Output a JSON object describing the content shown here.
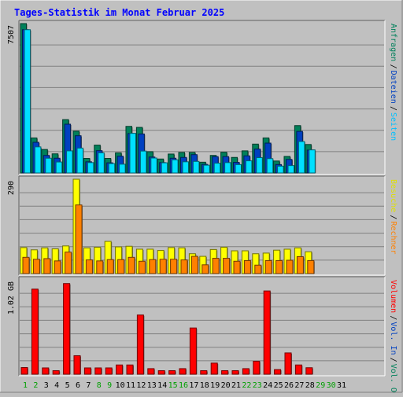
{
  "chart_data": {
    "type": "bar",
    "title": "Tages-Statistik im Monat Februar 2025",
    "categories": [
      "1",
      "2",
      "3",
      "4",
      "5",
      "6",
      "7",
      "8",
      "9",
      "10",
      "11",
      "12",
      "13",
      "14",
      "15",
      "16",
      "17",
      "18",
      "19",
      "20",
      "21",
      "22",
      "23",
      "24",
      "25",
      "26",
      "27",
      "28",
      "29",
      "30",
      "31"
    ],
    "weekend_categories": [
      "1",
      "2",
      "8",
      "9",
      "15",
      "16",
      "22",
      "23",
      "29",
      "30"
    ],
    "panels": [
      {
        "ytick": "7507",
        "ylim": [
          0,
          7507
        ],
        "right_labels": [
          {
            "text": "Anfragen",
            "color": "#00805a"
          },
          {
            "text": "Dateien",
            "color": "#0040c0"
          },
          {
            "text": "Seiten",
            "color": "#00c0ff"
          }
        ],
        "series": [
          {
            "name": "Anfragen",
            "color": "#00805a",
            "values": [
              7507,
              1760,
              1180,
              960,
              2680,
              2100,
              730,
              1400,
              730,
              1010,
              2340,
              2290,
              1070,
              700,
              950,
              1030,
              1030,
              540,
              880,
              1040,
              780,
              1110,
              1450,
              1760,
              600,
              830,
              2380,
              1430,
              0,
              0,
              0
            ]
          },
          {
            "name": "Dateien",
            "color": "#0040c0",
            "values": [
              7200,
              1540,
              880,
              740,
              2450,
              1870,
              560,
              1120,
              510,
              840,
              1980,
              1960,
              800,
              520,
              740,
              780,
              920,
              430,
              820,
              820,
              530,
              860,
              1200,
              1500,
              420,
              680,
              2090,
              1150,
              0,
              0,
              0
            ]
          },
          {
            "name": "Seiten",
            "color": "#00e0ff",
            "values": [
              7200,
              1310,
              740,
              550,
              1110,
              1250,
              520,
              1010,
              470,
              440,
              1990,
              1100,
              750,
              510,
              660,
              560,
              580,
              390,
              490,
              520,
              420,
              610,
              770,
              720,
              340,
              370,
              1580,
              1160,
              0,
              0,
              0
            ]
          }
        ]
      },
      {
        "ytick": "290",
        "ylim": [
          0,
          290
        ],
        "right_labels": [
          {
            "text": "Besuche",
            "color": "#e0e000"
          },
          {
            "text": "Rechner",
            "color": "#ff8000"
          }
        ],
        "series": [
          {
            "name": "Besuche",
            "color": "#ffff00",
            "values": [
              80,
              73,
              79,
              76,
              85,
              290,
              79,
              81,
              99,
              82,
              84,
              75,
              75,
              71,
              80,
              79,
              61,
              53,
              74,
              81,
              70,
              70,
              61,
              63,
              72,
              75,
              79,
              67,
              0,
              0,
              0
            ]
          },
          {
            "name": "Rechner",
            "color": "#ff8000",
            "values": [
              50,
              44,
              46,
              39,
              66,
              211,
              42,
              39,
              43,
              43,
              50,
              38,
              43,
              44,
              44,
              42,
              53,
              27,
              47,
              47,
              38,
              40,
              26,
              40,
              40,
              41,
              52,
              40,
              0,
              0,
              0
            ]
          }
        ]
      },
      {
        "ytick": "1.02 GB",
        "ylim": [
          0,
          1.02
        ],
        "right_labels": [
          {
            "text": "Volumen",
            "color": "#ff0000"
          },
          {
            "text": "Vol. In",
            "color": "#0040c0"
          },
          {
            "text": "Vol. Out",
            "color": "#00805a"
          }
        ],
        "series": [
          {
            "name": "Volumen",
            "color": "#ff0000",
            "values": [
              0.072,
              0.92,
              0.068,
              0.038,
              0.98,
              0.2,
              0.068,
              0.068,
              0.068,
              0.1,
              0.1,
              0.64,
              0.06,
              0.038,
              0.038,
              0.06,
              0.5,
              0.038,
              0.12,
              0.038,
              0.038,
              0.06,
              0.14,
              0.9,
              0.05,
              0.23,
              0.1,
              0.07,
              0,
              0,
              0
            ]
          }
        ]
      }
    ],
    "colors": {
      "background": "#c0c0c0",
      "title": "#0000ff",
      "weekend_label": "#00a000",
      "weekday_label": "#000000",
      "grid": "#808080"
    }
  }
}
